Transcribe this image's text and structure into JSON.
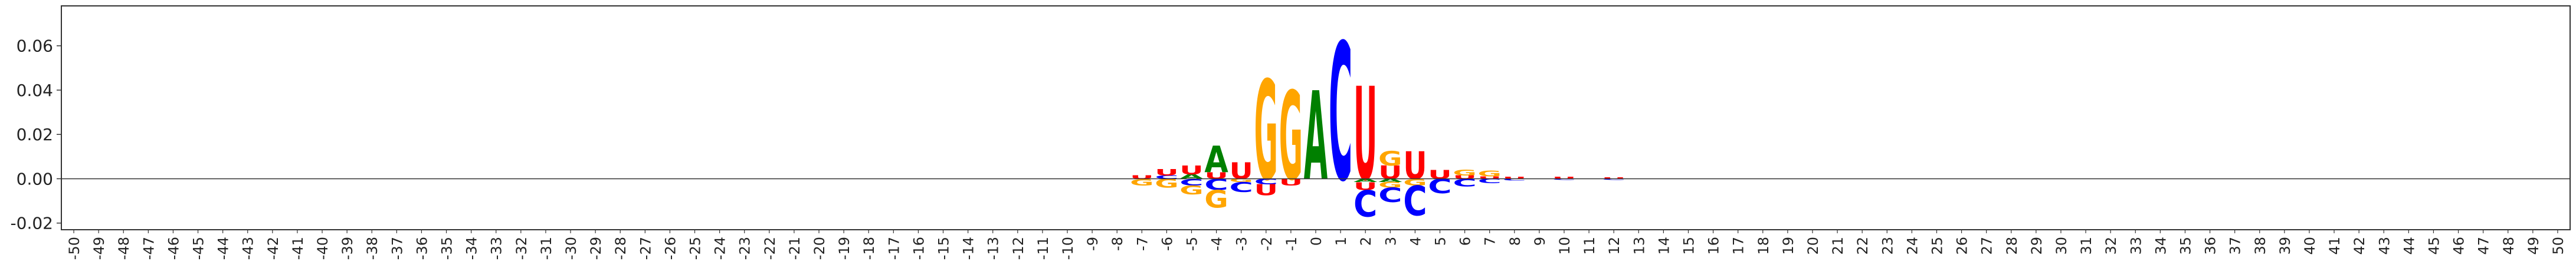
{
  "chart_data": {
    "type": "sequence-logo",
    "title": "",
    "xlabel": "",
    "ylabel": "",
    "ylim": [
      -0.023,
      0.078
    ],
    "y_ticks": [
      "0.06",
      "0.04",
      "0.02",
      "0.00",
      "-0.02"
    ],
    "y_tick_values": [
      0.06,
      0.04,
      0.02,
      0.0,
      -0.02
    ],
    "x_ticks": [
      "-50",
      "-49",
      "-48",
      "-47",
      "-46",
      "-45",
      "-44",
      "-43",
      "-42",
      "-41",
      "-40",
      "-39",
      "-38",
      "-37",
      "-36",
      "-35",
      "-34",
      "-33",
      "-32",
      "-31",
      "-30",
      "-29",
      "-28",
      "-27",
      "-26",
      "-25",
      "-24",
      "-23",
      "-22",
      "-21",
      "-20",
      "-19",
      "-18",
      "-17",
      "-16",
      "-15",
      "-14",
      "-13",
      "-12",
      "-11",
      "-10",
      "-9",
      "-8",
      "-7",
      "-6",
      "-5",
      "-4",
      "-3",
      "-2",
      "-1",
      "0",
      "1",
      "2",
      "3",
      "4",
      "5",
      "6",
      "7",
      "8",
      "9",
      "10",
      "11",
      "12",
      "13",
      "14",
      "15",
      "16",
      "17",
      "18",
      "19",
      "20",
      "21",
      "22",
      "23",
      "24",
      "25",
      "26",
      "27",
      "28",
      "29",
      "30",
      "31",
      "32",
      "33",
      "34",
      "35",
      "36",
      "37",
      "38",
      "39",
      "40",
      "41",
      "42",
      "43",
      "44",
      "45",
      "46",
      "47",
      "48",
      "49",
      "50"
    ],
    "letter_colors": {
      "A": "#008000",
      "C": "#0000ff",
      "G": "#ffa500",
      "U": "#ff0000"
    },
    "grid": false,
    "baseline": 0,
    "positions": [
      {
        "pos": -7,
        "letters": [
          {
            "l": "U",
            "v": 0.0015
          },
          {
            "l": "G",
            "v": -0.003
          }
        ]
      },
      {
        "pos": -6,
        "letters": [
          {
            "l": "U",
            "v": 0.003
          },
          {
            "l": "C",
            "v": 0.0015
          },
          {
            "l": "G",
            "v": -0.004
          }
        ]
      },
      {
        "pos": -5,
        "letters": [
          {
            "l": "U",
            "v": 0.004
          },
          {
            "l": "A",
            "v": 0.002
          },
          {
            "l": "C",
            "v": -0.003
          },
          {
            "l": "G",
            "v": -0.004
          }
        ]
      },
      {
        "pos": -4,
        "letters": [
          {
            "l": "A",
            "v": 0.012
          },
          {
            "l": "U",
            "v": 0.003
          },
          {
            "l": "C",
            "v": -0.005
          },
          {
            "l": "G",
            "v": -0.008
          }
        ]
      },
      {
        "pos": -3,
        "letters": [
          {
            "l": "U",
            "v": 0.0075
          },
          {
            "l": "C",
            "v": -0.0045
          },
          {
            "l": "G",
            "v": -0.0015
          }
        ]
      },
      {
        "pos": -2,
        "letters": [
          {
            "l": "G",
            "v": 0.045
          },
          {
            "l": "C",
            "v": -0.0025
          },
          {
            "l": "U",
            "v": -0.005
          }
        ]
      },
      {
        "pos": -1,
        "letters": [
          {
            "l": "G",
            "v": 0.04
          },
          {
            "l": "U",
            "v": -0.003
          }
        ]
      },
      {
        "pos": 0,
        "letters": [
          {
            "l": "A",
            "v": 0.04
          }
        ]
      },
      {
        "pos": 1,
        "letters": [
          {
            "l": "C",
            "v": 0.062
          }
        ]
      },
      {
        "pos": 2,
        "letters": [
          {
            "l": "U",
            "v": 0.042
          },
          {
            "l": "A",
            "v": -0.0015
          },
          {
            "l": "U",
            "v": -0.0035
          },
          {
            "l": "C",
            "v": -0.012
          }
        ]
      },
      {
        "pos": 3,
        "letters": [
          {
            "l": "G",
            "v": 0.0065
          },
          {
            "l": "U",
            "v": 0.006
          },
          {
            "l": "A",
            "v": -0.0015
          },
          {
            "l": "G",
            "v": -0.0025
          },
          {
            "l": "C",
            "v": -0.0065
          }
        ]
      },
      {
        "pos": 4,
        "letters": [
          {
            "l": "U",
            "v": 0.0125
          },
          {
            "l": "G",
            "v": -0.003
          },
          {
            "l": "C",
            "v": -0.0135
          }
        ]
      },
      {
        "pos": 5,
        "letters": [
          {
            "l": "U",
            "v": 0.004
          },
          {
            "l": "C",
            "v": -0.0065
          }
        ]
      },
      {
        "pos": 6,
        "letters": [
          {
            "l": "G",
            "v": 0.0025
          },
          {
            "l": "U",
            "v": 0.0015
          },
          {
            "l": "C",
            "v": -0.0035
          }
        ]
      },
      {
        "pos": 7,
        "letters": [
          {
            "l": "G",
            "v": 0.0025
          },
          {
            "l": "U",
            "v": 0.001
          },
          {
            "l": "C",
            "v": -0.002
          }
        ]
      },
      {
        "pos": 8,
        "letters": [
          {
            "l": "U",
            "v": 0.0008
          },
          {
            "l": "C",
            "v": -0.0008
          }
        ]
      },
      {
        "pos": 10,
        "letters": [
          {
            "l": "U",
            "v": 0.0008
          },
          {
            "l": "C",
            "v": -0.0006
          }
        ]
      },
      {
        "pos": 12,
        "letters": [
          {
            "l": "U",
            "v": 0.0006
          },
          {
            "l": "C",
            "v": -0.0006
          }
        ]
      }
    ]
  }
}
